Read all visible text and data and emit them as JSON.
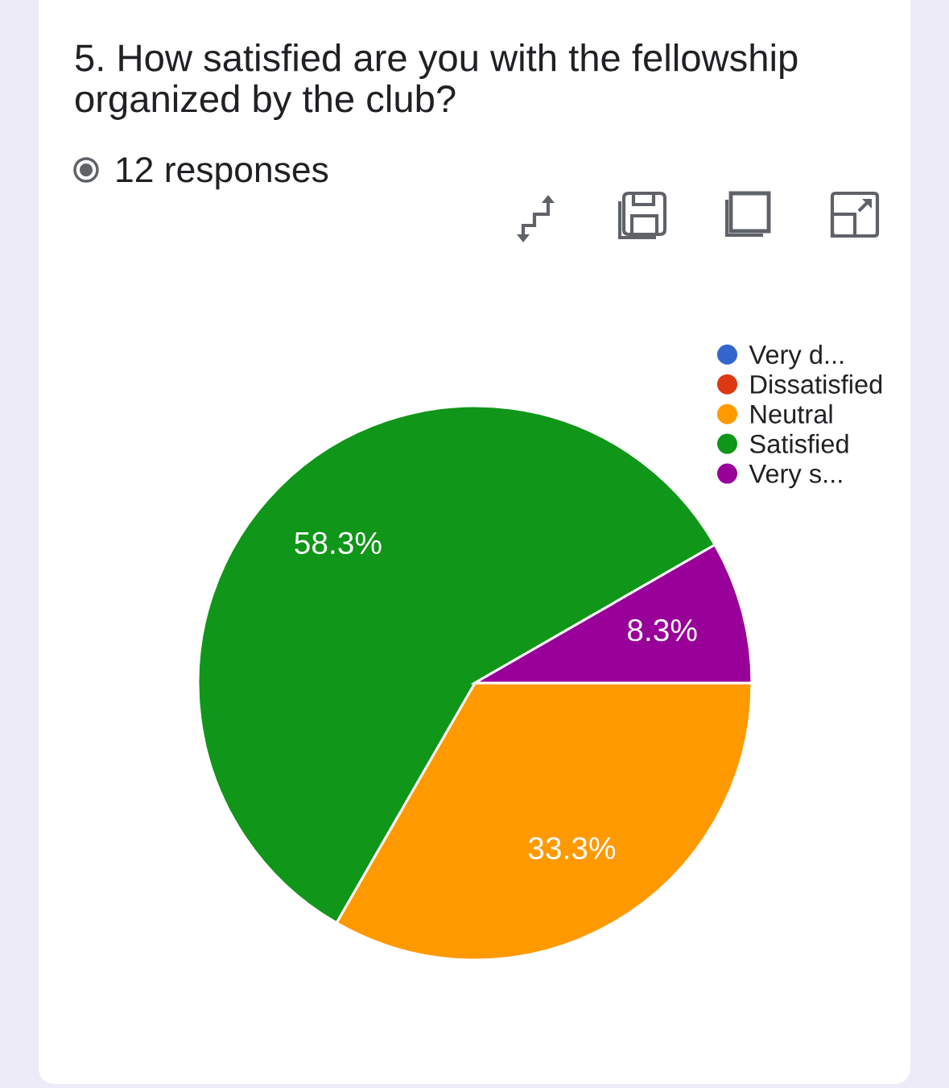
{
  "chart_data": {
    "type": "pie",
    "title": "5. How satisfied are you with the fellowship organized by the club?",
    "subtitle": "12 responses",
    "categories": [
      "Very d...",
      "Dissatisfied",
      "Neutral",
      "Satisfied",
      "Very s..."
    ],
    "values": [
      0,
      0,
      33.3,
      58.3,
      8.3
    ],
    "colors": [
      "#3366cc",
      "#dc3912",
      "#ff9900",
      "#109618",
      "#990099"
    ],
    "value_labels": [
      null,
      null,
      "33.3%",
      "58.3%",
      "8.3%"
    ],
    "legend": "top right"
  }
}
